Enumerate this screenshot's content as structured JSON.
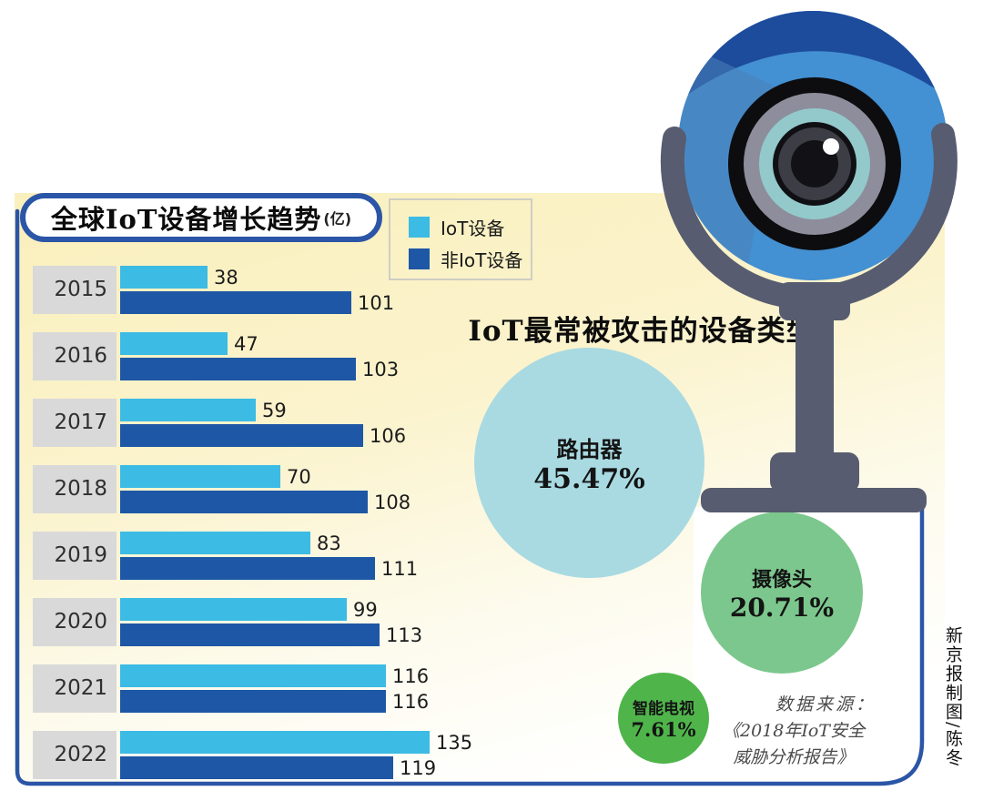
{
  "growth_chart": {
    "title": "全球IoT设备增长趋势",
    "unit_label": "(亿)"
  },
  "attack_chart_title": "IoT最常被攻击的设备类型",
  "chart_data": [
    {
      "type": "bar",
      "orientation": "horizontal",
      "title": "全球IoT设备增长趋势",
      "unit_label": "(亿)",
      "categories": [
        "2015",
        "2016",
        "2017",
        "2018",
        "2019",
        "2020",
        "2021",
        "2022"
      ],
      "series": [
        {
          "name": "IoT设备",
          "color": "#3cbbe4",
          "values": [
            38,
            47,
            59,
            70,
            83,
            99,
            116,
            135
          ]
        },
        {
          "name": "非IoT设备",
          "color": "#1e57a5",
          "values": [
            101,
            103,
            106,
            108,
            111,
            113,
            116,
            119
          ]
        }
      ],
      "xlim": [
        0,
        140
      ],
      "value_labels": true,
      "grid": false,
      "legend_position": "top-right"
    },
    {
      "type": "bubble",
      "title": "IoT最常被攻击的设备类型",
      "items": [
        {
          "label": "路由器",
          "value": 45.47,
          "display": "45.47%",
          "color": "#a9dae2"
        },
        {
          "label": "摄像头",
          "value": 20.71,
          "display": "20.71%",
          "color": "#7cc78d"
        },
        {
          "label": "智能电视",
          "value": 7.61,
          "display": "7.61%",
          "color": "#4fb54a"
        }
      ]
    }
  ],
  "source_note": {
    "line1": "数据来源：",
    "line2": "《2018年IoT安全",
    "line3": "威胁分析报告》"
  },
  "credit": "新京报制图/陈冬",
  "colors": {
    "panel_yellow_top": "#faf0be",
    "panel_border_blue": "#2b55a6",
    "year_label_bg": "#d9d9d9",
    "iot_bar": "#3cbbe4",
    "non_iot_bar": "#1e57a5",
    "router_bubble": "#a9dae2",
    "camera_bubble": "#7cc78d",
    "tv_bubble": "#4fb54a",
    "webcam_body_blue": "#4390d2",
    "webcam_cap_navy": "#1d4c9c",
    "webcam_stand_slate": "#575c70",
    "lens_gray": "#8d8d9c",
    "lens_teal": "#93c9cb"
  }
}
